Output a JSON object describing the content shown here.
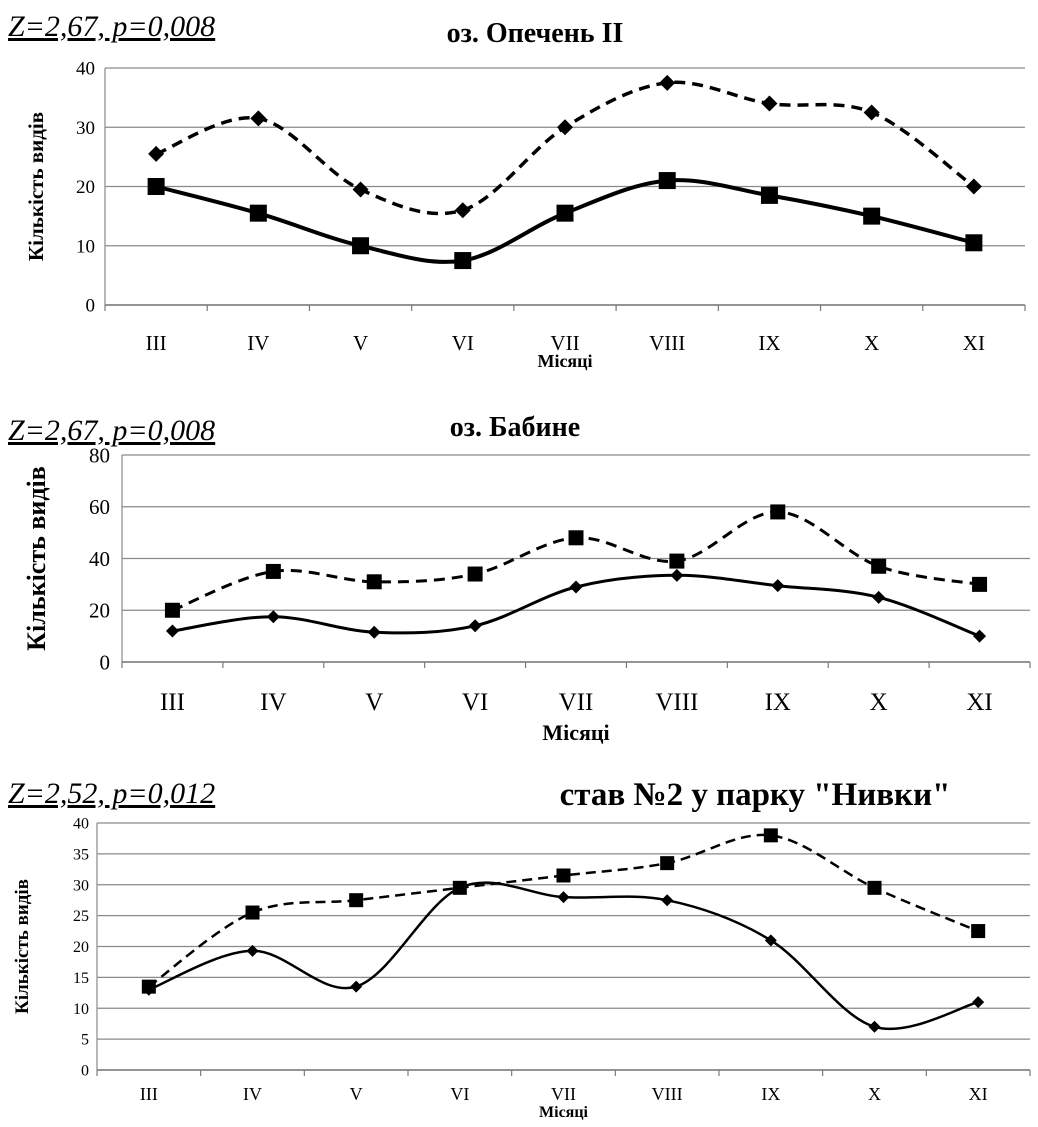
{
  "chart_data": [
    {
      "type": "line",
      "stat": "Z=2,67, p=0,008",
      "title": "оз. Опечень ІІ",
      "xlabel": "Місяці",
      "ylabel": "Кількість видів",
      "categories": [
        "III",
        "IV",
        "V",
        "VI",
        "VII",
        "VIII",
        "IX",
        "X",
        "XI"
      ],
      "ylim": [
        0,
        40
      ],
      "yticks": [
        0,
        10,
        20,
        30,
        40
      ],
      "grid": true,
      "series": [
        {
          "style": "dashed",
          "marker": "diamond",
          "values": [
            25.5,
            31.5,
            19.5,
            16,
            30,
            37.5,
            34,
            32.5,
            20
          ]
        },
        {
          "style": "solid",
          "marker": "square",
          "values": [
            20,
            15.5,
            10,
            7.5,
            15.5,
            21,
            18.5,
            15,
            10.5
          ]
        }
      ]
    },
    {
      "type": "line",
      "stat": "Z=2,67, p=0,008",
      "title": "оз. Бабине",
      "xlabel": "Місяці",
      "ylabel": "Кількість видів",
      "categories": [
        "III",
        "IV",
        "V",
        "VI",
        "VII",
        "VIII",
        "IX",
        "X",
        "XI"
      ],
      "ylim": [
        0,
        80
      ],
      "yticks": [
        0,
        20,
        40,
        60,
        80
      ],
      "grid": true,
      "series": [
        {
          "style": "dashed",
          "marker": "square",
          "values": [
            20,
            35,
            31,
            34,
            48,
            39,
            58,
            37,
            30
          ]
        },
        {
          "style": "solid",
          "marker": "diamond",
          "values": [
            12,
            17.5,
            11.5,
            14,
            29,
            33.5,
            29.5,
            25,
            10
          ]
        }
      ]
    },
    {
      "type": "line",
      "stat": "Z=2,52, p=0,012",
      "title": "став №2 у парку \"Нивки\"",
      "xlabel": "Місяці",
      "ylabel": "Кількість видів",
      "categories": [
        "III",
        "IV",
        "V",
        "VI",
        "VII",
        "VIII",
        "IX",
        "X",
        "XI"
      ],
      "ylim": [
        0,
        40
      ],
      "yticks": [
        0,
        5,
        10,
        15,
        20,
        25,
        30,
        35,
        40
      ],
      "grid": true,
      "series": [
        {
          "style": "dashed",
          "marker": "square",
          "values": [
            13.5,
            25.5,
            27.5,
            29.5,
            31.5,
            33.5,
            38,
            29.5,
            22.5
          ]
        },
        {
          "style": "solid",
          "marker": "diamond",
          "values": [
            13,
            19.3,
            13.5,
            29.5,
            28,
            27.5,
            21,
            7,
            11
          ]
        }
      ]
    }
  ]
}
